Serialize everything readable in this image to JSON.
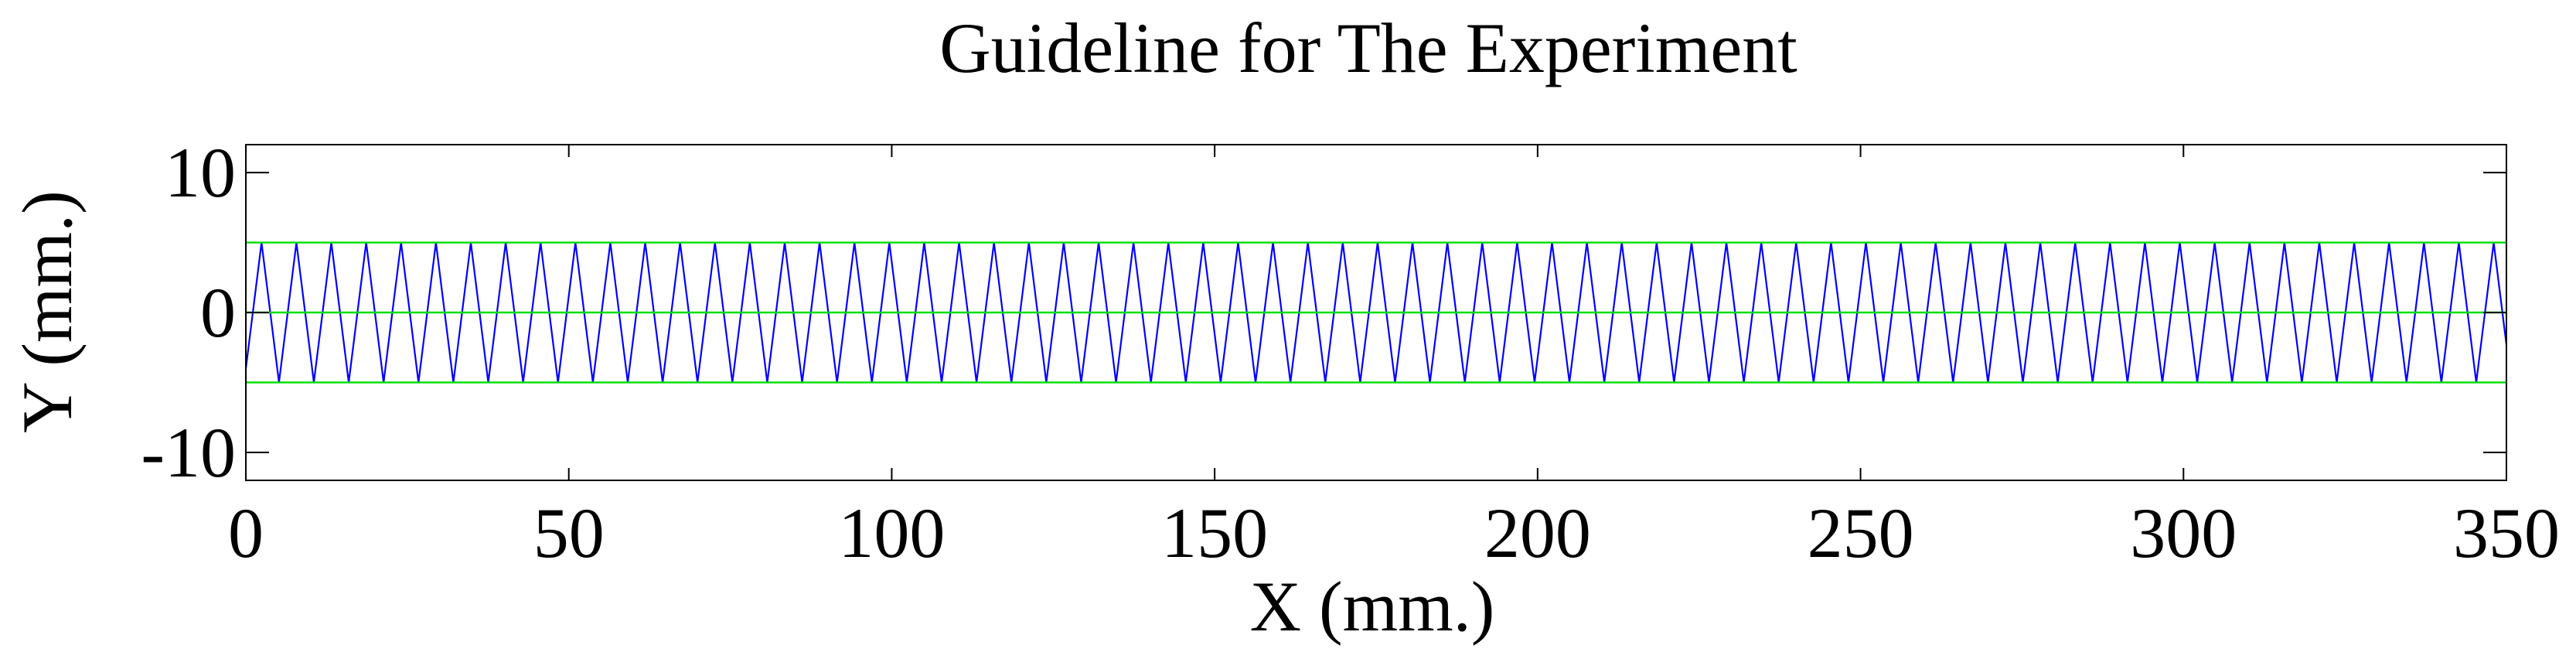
{
  "chart_data": {
    "type": "line",
    "title": "Guideline for The Experiment",
    "xlabel": "X (mm.)",
    "ylabel": "Y (mm.)",
    "xlim": [
      0,
      350
    ],
    "ylim": [
      -12,
      12
    ],
    "x_ticks": [
      0,
      50,
      100,
      150,
      200,
      250,
      300,
      350
    ],
    "x_tick_labels": [
      "0",
      "50",
      "100",
      "150",
      "200",
      "250",
      "300",
      "350"
    ],
    "y_ticks": [
      10,
      0,
      -10
    ],
    "y_tick_labels": [
      "10",
      "0",
      "-10"
    ],
    "grid": false,
    "legend": "none",
    "series": [
      {
        "style": "zigzag",
        "color": "#0000ff",
        "amplitude": 5,
        "period": 5.4,
        "x_start": 0,
        "y_start": -4,
        "x_end": 350,
        "y_end": 2
      },
      {
        "style": "horizontal",
        "color": "#00dd00",
        "y": 5
      },
      {
        "style": "horizontal",
        "color": "#00dd00",
        "y": 0
      },
      {
        "style": "horizontal",
        "color": "#00dd00",
        "y": -5
      }
    ]
  }
}
